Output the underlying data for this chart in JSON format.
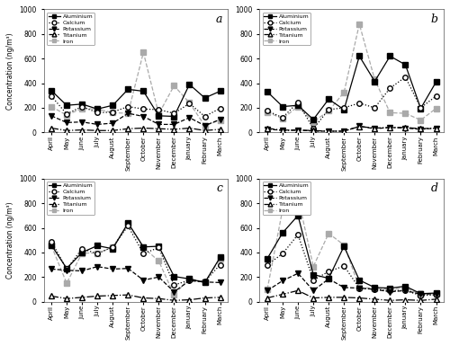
{
  "months": [
    "April",
    "May",
    "June",
    "July",
    "August",
    "September",
    "October",
    "November",
    "December",
    "January",
    "February",
    "March"
  ],
  "panels": {
    "a": {
      "label": "a",
      "Aluminium": [
        340,
        220,
        230,
        190,
        220,
        350,
        335,
        135,
        130,
        390,
        280,
        335
      ],
      "Calcium": [
        295,
        150,
        210,
        160,
        165,
        210,
        190,
        185,
        155,
        235,
        130,
        195
      ],
      "Potassium": [
        135,
        80,
        85,
        65,
        75,
        155,
        130,
        65,
        65,
        120,
        55,
        105
      ],
      "Titanium": [
        35,
        15,
        20,
        15,
        15,
        30,
        35,
        30,
        25,
        35,
        15,
        25
      ],
      "Iron": [
        210,
        140,
        195,
        190,
        160,
        155,
        650,
        150,
        380,
        240,
        55,
        100
      ]
    },
    "b": {
      "label": "b",
      "Aluminium": [
        330,
        210,
        220,
        105,
        270,
        185,
        620,
        415,
        620,
        550,
        195,
        410
      ],
      "Calcium": [
        175,
        120,
        245,
        30,
        185,
        200,
        238,
        200,
        360,
        450,
        200,
        295
      ],
      "Potassium": [
        25,
        18,
        20,
        10,
        10,
        10,
        50,
        30,
        40,
        35,
        25,
        35
      ],
      "Titanium": [
        35,
        15,
        18,
        15,
        10,
        10,
        48,
        35,
        40,
        40,
        30,
        35
      ],
      "Iron": [
        165,
        112,
        210,
        85,
        175,
        325,
        880,
        430,
        160,
        155,
        100,
        195
      ]
    },
    "c": {
      "label": "c",
      "Aluminium": [
        460,
        270,
        400,
        455,
        430,
        640,
        445,
        450,
        205,
        185,
        155,
        360
      ],
      "Calcium": [
        490,
        265,
        430,
        390,
        445,
        615,
        390,
        440,
        135,
        175,
        165,
        300
      ],
      "Potassium": [
        265,
        255,
        250,
        285,
        265,
        270,
        175,
        200,
        80,
        170,
        160,
        155
      ],
      "Titanium": [
        45,
        25,
        35,
        45,
        50,
        55,
        30,
        25,
        10,
        15,
        30,
        35
      ],
      "Iron": [
        455,
        150,
        395,
        395,
        440,
        630,
        440,
        330,
        55,
        190,
        155,
        350
      ]
    },
    "d": {
      "label": "d",
      "Aluminium": [
        350,
        560,
        700,
        220,
        190,
        450,
        175,
        115,
        110,
        125,
        65,
        70
      ],
      "Calcium": [
        300,
        390,
        545,
        175,
        245,
        290,
        110,
        100,
        90,
        90,
        50,
        55
      ],
      "Potassium": [
        90,
        170,
        230,
        90,
        185,
        115,
        110,
        100,
        80,
        90,
        60,
        65
      ],
      "Titanium": [
        30,
        60,
        90,
        30,
        35,
        35,
        30,
        20,
        10,
        15,
        10,
        20
      ],
      "Iron": [
        100,
        750,
        850,
        285,
        555,
        460,
        115,
        110,
        100,
        110,
        60,
        65
      ]
    }
  },
  "ylim": [
    0,
    1000
  ],
  "yticks": [
    0,
    200,
    400,
    600,
    800,
    1000
  ],
  "series_styles": {
    "Aluminium": {
      "linestyle": "-",
      "marker": "s",
      "markersize": 4,
      "color": "#000000",
      "markerfacecolor": "#000000",
      "linewidth": 0.9
    },
    "Calcium": {
      "linestyle": ":",
      "marker": "o",
      "markersize": 4,
      "color": "#000000",
      "markerfacecolor": "white",
      "linewidth": 0.9
    },
    "Potassium": {
      "linestyle": "--",
      "marker": "v",
      "markersize": 4,
      "color": "#000000",
      "markerfacecolor": "#000000",
      "linewidth": 0.9
    },
    "Titanium": {
      "linestyle": "-.",
      "marker": "^",
      "markersize": 4,
      "color": "#000000",
      "markerfacecolor": "white",
      "linewidth": 0.9
    },
    "Iron": {
      "linestyle": "--",
      "marker": "s",
      "markersize": 4,
      "color": "#aaaaaa",
      "markerfacecolor": "#aaaaaa",
      "linewidth": 0.9
    }
  },
  "ylabel": "Concentration (ng/m³)",
  "background_color": "#ffffff"
}
